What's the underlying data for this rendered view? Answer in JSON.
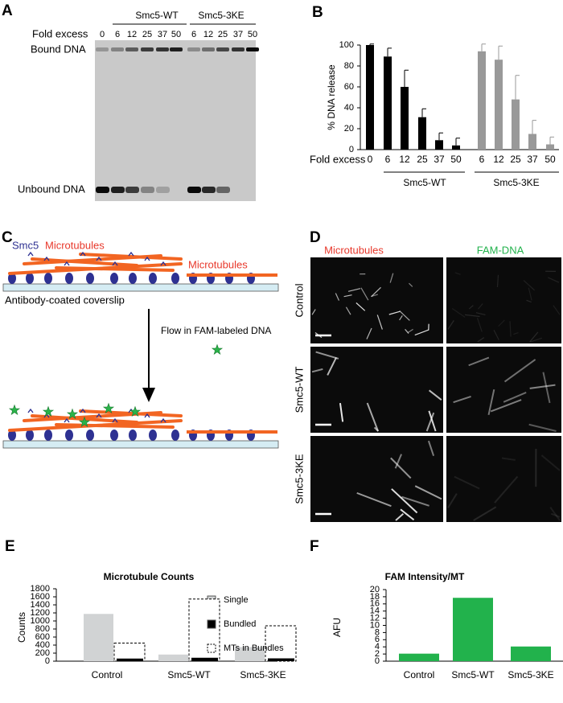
{
  "panel_labels": [
    "A",
    "B",
    "C",
    "D",
    "E",
    "F"
  ],
  "gel": {
    "groups": [
      "Smc5-WT",
      "Smc5-3KE"
    ],
    "xlabel": "Fold excess",
    "lanes": [
      "0",
      "6",
      "12",
      "25",
      "37",
      "50",
      "6",
      "12",
      "25",
      "37",
      "50"
    ],
    "bands": [
      "Bound DNA",
      "Unbound DNA"
    ]
  },
  "diagram": {
    "smc5": "Smc5",
    "bundle_label": "Microtubules",
    "single_label": "Microtubules",
    "coverslip": "Antibody-coated coverslip",
    "step": "Flow in FAM-labeled DNA"
  },
  "micrographs": {
    "columns": [
      "Microtubules",
      "FAM-DNA"
    ],
    "rows": [
      "Control",
      "Smc5-WT",
      "Smc5-3KE"
    ]
  },
  "chart_data": [
    {
      "type": "bar",
      "ylabel": "% DNA release",
      "xlabel": "Fold excess",
      "categories": [
        "0",
        "6",
        "12",
        "25",
        "37",
        "50",
        "6",
        "12",
        "25",
        "37",
        "50"
      ],
      "series": [
        {
          "name": "Smc5-WT",
          "color": "#000000",
          "values": [
            100,
            89,
            60,
            31,
            9,
            4,
            null,
            null,
            null,
            null,
            null
          ],
          "errors": [
            1,
            8,
            16,
            8,
            7,
            7,
            null,
            null,
            null,
            null,
            null
          ]
        },
        {
          "name": "Smc5-3KE",
          "color": "#999999",
          "values": [
            null,
            null,
            null,
            null,
            null,
            null,
            94,
            86,
            48,
            15,
            5
          ],
          "errors": [
            null,
            null,
            null,
            null,
            null,
            null,
            7,
            13,
            23,
            13,
            7
          ]
        }
      ],
      "ylim": [
        0,
        100
      ],
      "yticks": [
        0,
        20,
        40,
        60,
        80,
        100
      ]
    },
    {
      "type": "bar",
      "title": "Microtubule Counts",
      "ylabel": "Counts",
      "categories": [
        "Control",
        "Smc5-WT",
        "Smc5-3KE"
      ],
      "series": [
        {
          "name": "Single",
          "color": "#d1d3d4",
          "values": [
            1175,
            165,
            350
          ]
        },
        {
          "name": "Bundled",
          "color": "#000000",
          "values": [
            65,
            85,
            70
          ]
        },
        {
          "name": "MTs in Bundles",
          "color": "#ffffff",
          "style": "dashed",
          "values": [
            450,
            1545,
            880
          ]
        }
      ],
      "ylim": [
        0,
        1800
      ],
      "yticks": [
        0,
        200,
        400,
        600,
        800,
        1000,
        1200,
        1400,
        1600,
        1800
      ],
      "legend": "top-right"
    },
    {
      "type": "bar",
      "title": "FAM Intensity/MT",
      "ylabel": "AFU",
      "categories": [
        "Control",
        "Smc5-WT",
        "Smc5-3KE"
      ],
      "values": [
        2.1,
        17.7,
        4.1
      ],
      "color": "#22b24c",
      "ylim": [
        0,
        20
      ],
      "yticks": [
        0,
        2,
        4,
        6,
        8,
        10,
        12,
        14,
        16,
        18,
        20
      ]
    }
  ]
}
